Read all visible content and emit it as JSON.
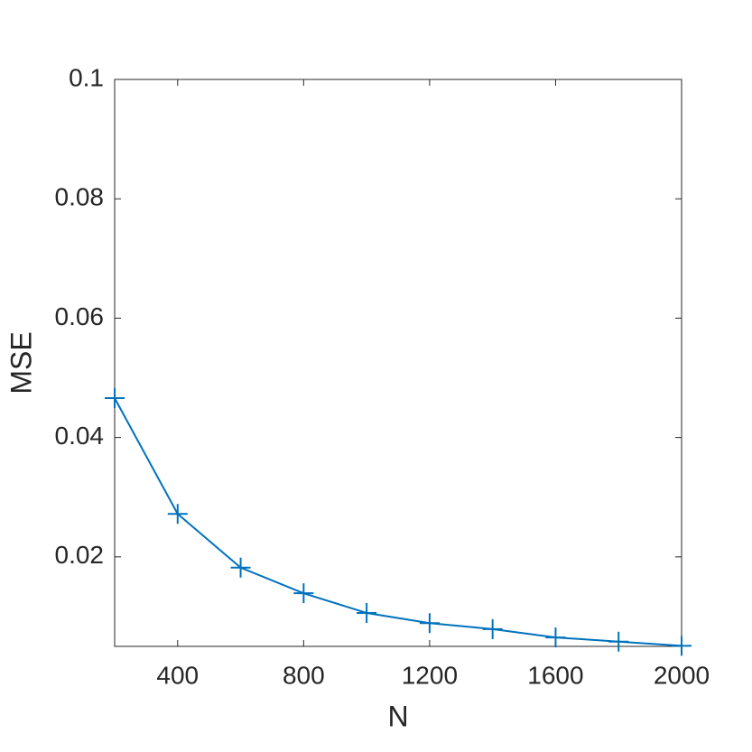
{
  "chart_data": {
    "type": "line",
    "x": [
      200,
      400,
      600,
      800,
      1000,
      1200,
      1400,
      1600,
      1800,
      2000
    ],
    "values": [
      0.0466,
      0.0272,
      0.0182,
      0.0139,
      0.0106,
      0.0089,
      0.0079,
      0.0065,
      0.0058,
      0.0051
    ],
    "color": "#0072bd",
    "marker": "+",
    "xlabel": "N",
    "ylabel": "MSE",
    "xlim": [
      200,
      2000
    ],
    "xticks": [
      400,
      800,
      1200,
      1600,
      2000
    ],
    "ylim": [
      0.005,
      0.1
    ],
    "yticks": [
      0.02,
      0.04,
      0.06,
      0.08,
      0.1
    ],
    "grid": false
  }
}
